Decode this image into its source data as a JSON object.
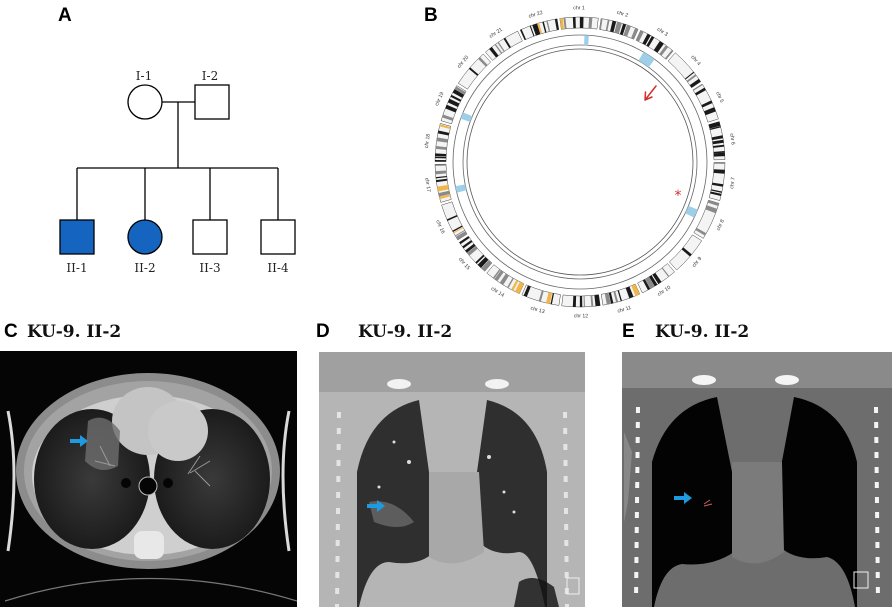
{
  "panels": {
    "a": {
      "letter": "A"
    },
    "b": {
      "letter": "B"
    },
    "c": {
      "letter": "C",
      "title": "KU-9. II-2"
    },
    "d": {
      "letter": "D",
      "title": "KU-9. II-2"
    },
    "e": {
      "letter": "E",
      "title": "KU-9. II-2"
    }
  },
  "pedigree": {
    "affected_color": "#1565c0",
    "members": [
      {
        "id": "I-1",
        "sex": "female",
        "affected": false
      },
      {
        "id": "I-2",
        "sex": "male",
        "affected": false
      },
      {
        "id": "II-1",
        "sex": "male",
        "affected": true
      },
      {
        "id": "II-2",
        "sex": "female",
        "affected": true
      },
      {
        "id": "II-3",
        "sex": "male",
        "affected": false
      },
      {
        "id": "II-4",
        "sex": "male",
        "affected": false
      }
    ]
  },
  "circos": {
    "chromosomes": [
      "chr 1",
      "chr 2",
      "chr 3",
      "chr 4",
      "chr 5",
      "chr 6",
      "chr 7",
      "chr 8",
      "chr 9",
      "chr 10",
      "chr 11",
      "chr 12",
      "chr 13",
      "chr 14",
      "chr 15",
      "chr 16",
      "chr 17",
      "chr 18",
      "chr 19",
      "chr 20",
      "chr 21",
      "chr 22"
    ],
    "highlight_color": "#9ecfe8",
    "arrow_color": "#d32f2f",
    "asterisk": "*"
  },
  "ct": {
    "arrow_color": "#1e9be0"
  }
}
